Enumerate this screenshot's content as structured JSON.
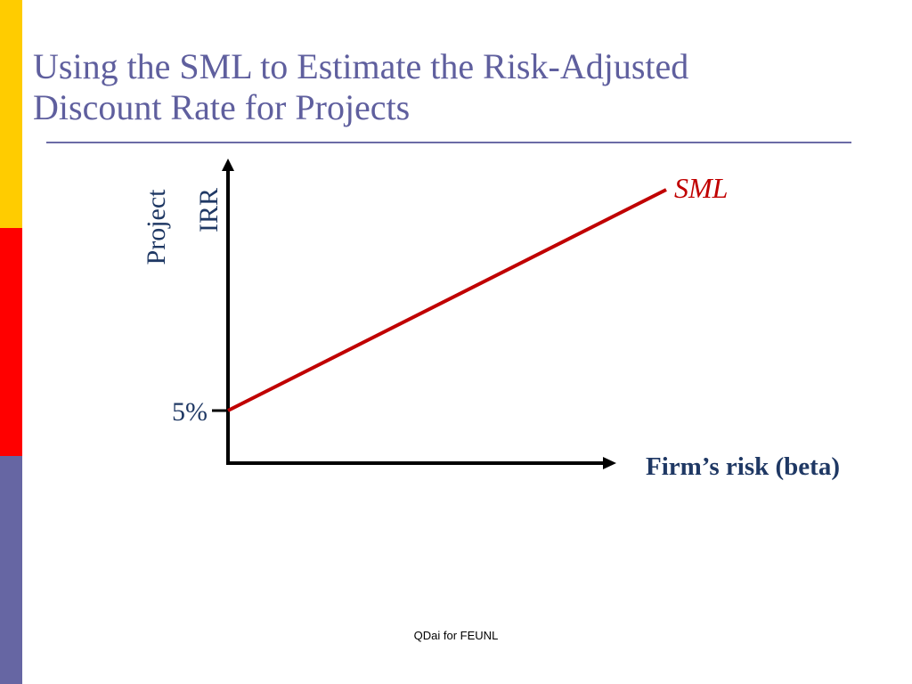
{
  "slide": {
    "title_lines": [
      "Using the SML to Estimate the Risk-Adjusted",
      "Discount Rate for Projects"
    ],
    "footer": "QDai for FEUNL"
  },
  "colors": {
    "title": "#5f5f9e",
    "rule": "#6b6ba6",
    "axis": "#000000",
    "sml_line": "#c00000",
    "label_blue": "#1f3864",
    "bar_yellow": "#ffcc00",
    "bar_red": "#ff0000",
    "bar_blue": "#6666a3"
  },
  "chart_data": {
    "type": "line",
    "title": "",
    "ylabel_lines": [
      "Project",
      "IRR"
    ],
    "xlabel": "Firm’s risk (beta)",
    "y_tick_labels": [
      "5%"
    ],
    "series": [
      {
        "name": "SML",
        "x": [
          0,
          1
        ],
        "y": [
          5,
          20
        ]
      }
    ],
    "grid": false,
    "legend": "none"
  }
}
